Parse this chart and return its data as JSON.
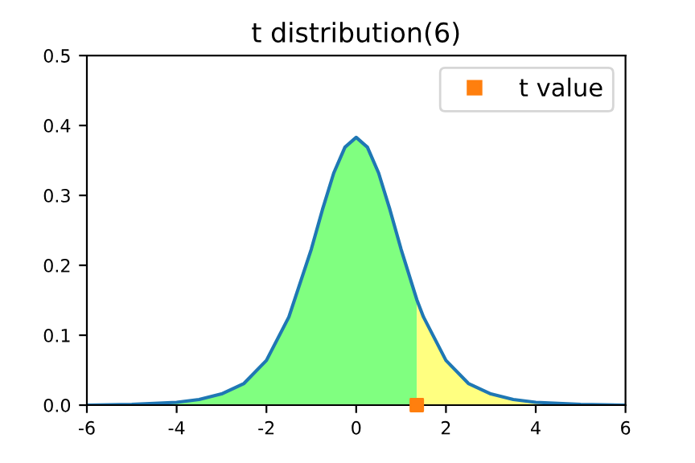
{
  "chart_data": {
    "type": "line",
    "title": "t distribution(6)",
    "xlim": [
      -6,
      6
    ],
    "ylim": [
      0,
      0.5
    ],
    "xticks": [
      -6,
      -4,
      -2,
      0,
      2,
      4,
      6
    ],
    "yticks": [
      {
        "value": 0,
        "label": "0.0"
      },
      0.1,
      0.2,
      0.3,
      0.4,
      0.5
    ],
    "legend": "top right",
    "grid": false,
    "series": [
      {
        "type": "area",
        "color": "#80ff80",
        "x": [
          -6,
          -5,
          -4,
          -3.5,
          -3,
          -2.5,
          -2,
          -1.5,
          -1,
          -0.75,
          -0.5,
          -0.25,
          0,
          0.25,
          0.5,
          0.75,
          1,
          1.35
        ],
        "values": [
          0.0,
          0.001,
          0.004,
          0.008,
          0.016,
          0.031,
          0.064,
          0.126,
          0.223,
          0.28,
          0.332,
          0.369,
          0.383,
          0.369,
          0.332,
          0.28,
          0.223,
          0.151
        ]
      },
      {
        "type": "area",
        "color": "#ffff80",
        "x": [
          1.35,
          1.5,
          2,
          2.5,
          3,
          3.5,
          4,
          5,
          6
        ],
        "values": [
          0.151,
          0.126,
          0.064,
          0.031,
          0.016,
          0.008,
          0.004,
          0.001,
          0.0
        ]
      },
      {
        "color": "#1f77b4",
        "x": [
          -6,
          -5,
          -4,
          -3.5,
          -3,
          -2.5,
          -2,
          -1.5,
          -1,
          -0.75,
          -0.5,
          -0.25,
          0,
          0.25,
          0.5,
          0.75,
          1,
          1.35,
          1.5,
          2,
          2.5,
          3,
          3.5,
          4,
          5,
          6
        ],
        "values": [
          0.0,
          0.001,
          0.004,
          0.008,
          0.016,
          0.031,
          0.064,
          0.126,
          0.223,
          0.28,
          0.332,
          0.369,
          0.383,
          0.369,
          0.332,
          0.28,
          0.223,
          0.151,
          0.126,
          0.064,
          0.031,
          0.016,
          0.008,
          0.004,
          0.001,
          0.0
        ]
      },
      {
        "type": "scatter",
        "name": "t value",
        "color": "#ff7f0e",
        "marker": "square",
        "x": [
          1.35
        ],
        "values": [
          0
        ]
      }
    ]
  }
}
